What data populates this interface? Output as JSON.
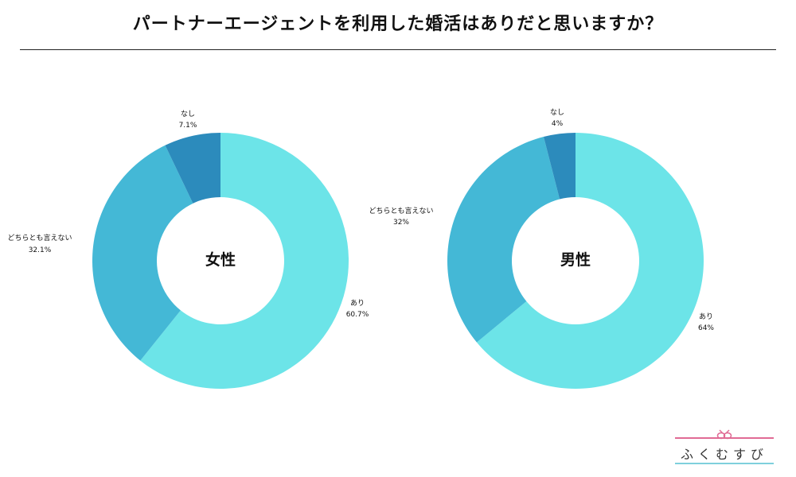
{
  "title": "パートナーエージェントを利用した婚活はありだと思いますか？",
  "logo": {
    "text": "ふくむすび",
    "accent": "#e06b95",
    "accent2": "#7fd0dc"
  },
  "colors": {
    "ari": "#6ce4e8",
    "dochira": "#44b8d6",
    "nashi": "#2c8bbc"
  },
  "chart_data": [
    {
      "type": "pie",
      "center_label": "女性",
      "slices": [
        {
          "label": "あり",
          "value": 60.7,
          "display": "60.7%"
        },
        {
          "label": "どちらとも言えない",
          "value": 32.1,
          "display": "32.1%"
        },
        {
          "label": "なし",
          "value": 7.1,
          "display": "7.1%"
        }
      ]
    },
    {
      "type": "pie",
      "center_label": "男性",
      "slices": [
        {
          "label": "あり",
          "value": 64,
          "display": "64%"
        },
        {
          "label": "どちらとも言えない",
          "value": 32,
          "display": "32%"
        },
        {
          "label": "なし",
          "value": 4,
          "display": "4%"
        }
      ]
    }
  ]
}
